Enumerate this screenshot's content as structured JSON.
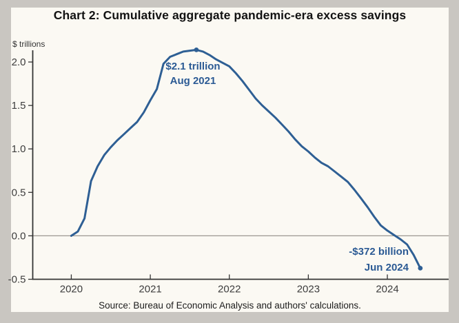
{
  "header": {
    "title": "Chart 2: Cumulative aggregate pandemic-era excess savings"
  },
  "footer": {
    "source_note": "Source: Bureau of Economic Analysis and authors' calculations."
  },
  "chart_data": {
    "type": "line",
    "title": "Chart 2: Cumulative aggregate pandemic-era excess savings",
    "ylabel": "$ trillions",
    "xlabel": "",
    "xlim": [
      2019.512,
      2024.776
    ],
    "ylim": [
      -0.5,
      2.135
    ],
    "x_ticks": [
      2020,
      2021,
      2022,
      2023,
      2024
    ],
    "y_ticks": [
      2.0,
      1.5,
      1.0,
      0.5,
      0.0,
      -0.5
    ],
    "grid": false,
    "zero_line": true,
    "legend": "none",
    "series": [
      {
        "name": "Cumulative aggregate pandemic-era excess savings ($ trillions)",
        "points": [
          [
            2020.0,
            0.0
          ],
          [
            2020.083,
            0.05
          ],
          [
            2020.167,
            0.2
          ],
          [
            2020.25,
            0.63
          ],
          [
            2020.333,
            0.8
          ],
          [
            2020.417,
            0.93
          ],
          [
            2020.5,
            1.02
          ],
          [
            2020.583,
            1.1
          ],
          [
            2020.667,
            1.17
          ],
          [
            2020.75,
            1.24
          ],
          [
            2020.833,
            1.31
          ],
          [
            2020.917,
            1.42
          ],
          [
            2021.0,
            1.56
          ],
          [
            2021.083,
            1.69
          ],
          [
            2021.167,
            1.98
          ],
          [
            2021.25,
            2.06
          ],
          [
            2021.333,
            2.09
          ],
          [
            2021.417,
            2.12
          ],
          [
            2021.5,
            2.13
          ],
          [
            2021.583,
            2.14
          ],
          [
            2021.667,
            2.12
          ],
          [
            2021.75,
            2.08
          ],
          [
            2021.833,
            2.03
          ],
          [
            2021.917,
            1.99
          ],
          [
            2022.0,
            1.95
          ],
          [
            2022.083,
            1.87
          ],
          [
            2022.167,
            1.78
          ],
          [
            2022.25,
            1.68
          ],
          [
            2022.333,
            1.58
          ],
          [
            2022.417,
            1.5
          ],
          [
            2022.5,
            1.43
          ],
          [
            2022.583,
            1.36
          ],
          [
            2022.667,
            1.28
          ],
          [
            2022.75,
            1.2
          ],
          [
            2022.833,
            1.11
          ],
          [
            2022.917,
            1.03
          ],
          [
            2023.0,
            0.97
          ],
          [
            2023.083,
            0.9
          ],
          [
            2023.167,
            0.84
          ],
          [
            2023.25,
            0.8
          ],
          [
            2023.333,
            0.74
          ],
          [
            2023.417,
            0.68
          ],
          [
            2023.5,
            0.62
          ],
          [
            2023.583,
            0.53
          ],
          [
            2023.667,
            0.43
          ],
          [
            2023.75,
            0.33
          ],
          [
            2023.833,
            0.22
          ],
          [
            2023.917,
            0.12
          ],
          [
            2024.0,
            0.06
          ],
          [
            2024.083,
            0.01
          ],
          [
            2024.167,
            -0.04
          ],
          [
            2024.25,
            -0.1
          ],
          [
            2024.333,
            -0.22
          ],
          [
            2024.417,
            -0.372
          ]
        ]
      }
    ],
    "markers": [
      {
        "x": 2021.583,
        "y": 2.14,
        "label": "$2.1 trillion, Aug 2021"
      },
      {
        "x": 2024.417,
        "y": -0.372,
        "label": "-$372 billion, Jun 2024"
      }
    ],
    "annotations": [
      {
        "lines": [
          "$2.1 trillion",
          "Aug 2021"
        ],
        "anchor": "peak"
      },
      {
        "lines": [
          "-$372 billion",
          "Jun 2024"
        ],
        "anchor": "end"
      }
    ],
    "colors": {
      "line": "#2e5f94",
      "annotation_text": "#2b5a94",
      "axis": "#333333",
      "tick_label": "#3d3d3d",
      "zero_line": "#9b9791",
      "background": "#fbf9f3",
      "frame": "#c9c6c1"
    }
  }
}
